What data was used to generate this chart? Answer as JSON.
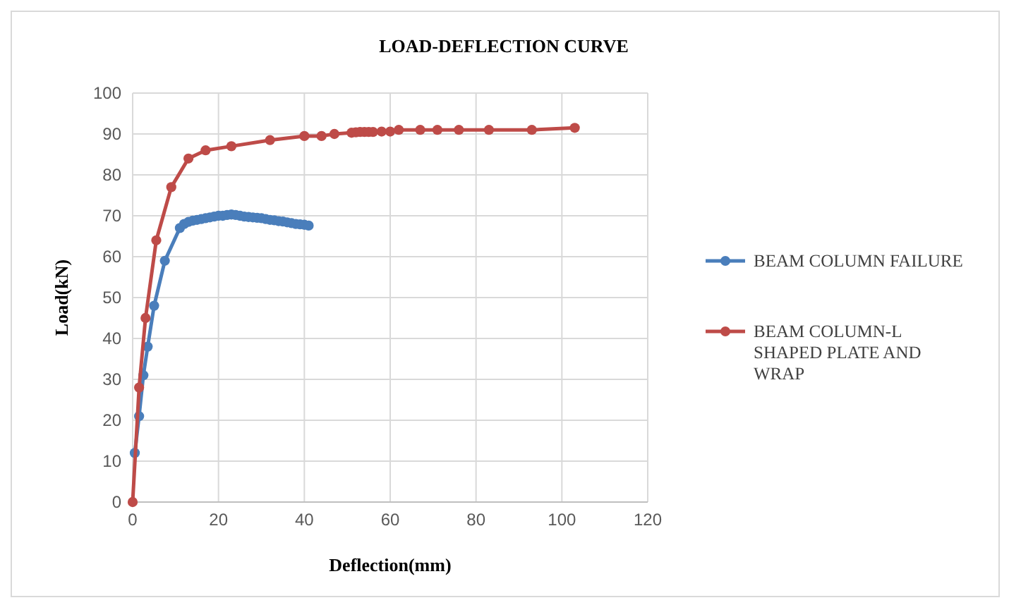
{
  "chart_data": {
    "type": "line",
    "title": "LOAD-DEFLECTION CURVE",
    "xlabel": "Deflection(mm)",
    "ylabel": "Load(kN)",
    "xlim": [
      0,
      120
    ],
    "xticks": [
      0,
      20,
      40,
      60,
      80,
      100,
      120
    ],
    "ylim": [
      0,
      100
    ],
    "yticks": [
      0,
      10,
      20,
      30,
      40,
      50,
      60,
      70,
      80,
      90,
      100
    ],
    "grid": true,
    "legend": "right",
    "marker": "circle",
    "line_style": "solid",
    "series": [
      {
        "name": "BEAM COLUMN FAILURE",
        "color": "#4a7ebb",
        "x": [
          0.5,
          1.5,
          2.5,
          3.5,
          5,
          7.5,
          11,
          12,
          13,
          14,
          15,
          16,
          17,
          18,
          19,
          20,
          21,
          22,
          23,
          24,
          25,
          26,
          27,
          28,
          29,
          30,
          31,
          32,
          33,
          34,
          35,
          36,
          37,
          38,
          39,
          40,
          41
        ],
        "values": [
          12,
          21,
          31,
          38,
          48,
          59,
          67,
          68,
          68.5,
          68.8,
          69,
          69.2,
          69.4,
          69.6,
          69.8,
          70,
          70,
          70.2,
          70.3,
          70.2,
          70,
          69.8,
          69.7,
          69.6,
          69.5,
          69.4,
          69.2,
          69,
          68.9,
          68.7,
          68.6,
          68.4,
          68.2,
          68,
          67.9,
          67.8,
          67.6
        ]
      },
      {
        "name": "BEAM COLUMN-L SHAPED PLATE AND WRAP",
        "color": "#be4b48",
        "x": [
          0,
          1.5,
          3,
          5.5,
          9,
          13,
          17,
          23,
          32,
          40,
          44,
          47,
          51,
          52,
          53,
          54,
          55,
          56,
          58,
          60,
          62,
          67,
          71,
          76,
          83,
          93,
          103
        ],
        "values": [
          0,
          28,
          45,
          64,
          77,
          84,
          86,
          87,
          88.5,
          89.5,
          89.5,
          90,
          90.3,
          90.4,
          90.5,
          90.5,
          90.5,
          90.5,
          90.6,
          90.6,
          91,
          91,
          91,
          91,
          91,
          91,
          91.5
        ]
      }
    ]
  }
}
